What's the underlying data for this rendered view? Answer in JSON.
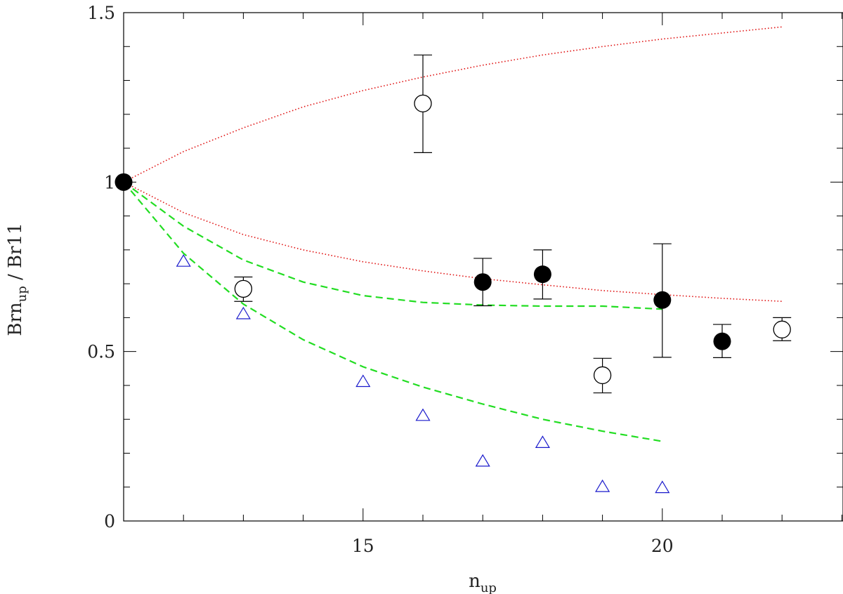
{
  "chart_data": {
    "type": "scatter",
    "xlabel": "n",
    "xlabel_sub": "up",
    "ylabel": "Brn",
    "ylabel_sub": "up",
    "ylabel_suffix": " / Br11",
    "xlim": [
      11,
      23
    ],
    "ylim": [
      0,
      1.5
    ],
    "x_major_ticks": [
      15,
      20
    ],
    "x_tick_labels": [
      "15",
      "20"
    ],
    "y_major_ticks": [
      0,
      0.5,
      1,
      1.5
    ],
    "y_tick_labels": [
      "0",
      "0.5",
      "1",
      "1.5"
    ],
    "colors": {
      "axis": "#000000",
      "data": "#000000",
      "model_dotted": "#e01010",
      "model_dashed": "#22dd22",
      "triangles": "#1a1acc"
    },
    "series": [
      {
        "marker": "filled-circle",
        "points": [
          {
            "x": 11,
            "y": 1.0
          },
          {
            "x": 17,
            "y": 0.705,
            "err": [
              0.635,
              0.775
            ]
          },
          {
            "x": 18,
            "y": 0.728,
            "err": [
              0.655,
              0.8
            ]
          },
          {
            "x": 20,
            "y": 0.652,
            "err": [
              0.483,
              0.818
            ]
          },
          {
            "x": 21,
            "y": 0.53,
            "err": [
              0.482,
              0.58
            ]
          }
        ]
      },
      {
        "marker": "open-circle",
        "points": [
          {
            "x": 13,
            "y": 0.685,
            "err": [
              0.648,
              0.72
            ]
          },
          {
            "x": 16,
            "y": 1.232,
            "err": [
              1.087,
              1.375
            ]
          },
          {
            "x": 19,
            "y": 0.43,
            "err": [
              0.378,
              0.48
            ]
          },
          {
            "x": 22,
            "y": 0.565,
            "err": [
              0.532,
              0.6
            ]
          }
        ]
      },
      {
        "marker": "open-triangle",
        "points": [
          {
            "x": 12,
            "y": 0.765
          },
          {
            "x": 13,
            "y": 0.61
          },
          {
            "x": 15,
            "y": 0.41
          },
          {
            "x": 16,
            "y": 0.31
          },
          {
            "x": 17,
            "y": 0.175
          },
          {
            "x": 18,
            "y": 0.23
          },
          {
            "x": 19,
            "y": 0.1
          },
          {
            "x": 20,
            "y": 0.097
          }
        ]
      }
    ],
    "lines": [
      {
        "style": "dotted",
        "points": [
          [
            11,
            1.0
          ],
          [
            12,
            1.09
          ],
          [
            13,
            1.16
          ],
          [
            14,
            1.222
          ],
          [
            15,
            1.27
          ],
          [
            16,
            1.31
          ],
          [
            17,
            1.345
          ],
          [
            18,
            1.375
          ],
          [
            19,
            1.4
          ],
          [
            20,
            1.422
          ],
          [
            21,
            1.44
          ],
          [
            22,
            1.458
          ]
        ]
      },
      {
        "style": "dotted",
        "points": [
          [
            11,
            1.0
          ],
          [
            12,
            0.91
          ],
          [
            13,
            0.845
          ],
          [
            14,
            0.8
          ],
          [
            15,
            0.765
          ],
          [
            16,
            0.738
          ],
          [
            17,
            0.715
          ],
          [
            18,
            0.697
          ],
          [
            19,
            0.68
          ],
          [
            20,
            0.668
          ],
          [
            21,
            0.657
          ],
          [
            22,
            0.648
          ]
        ]
      },
      {
        "style": "dashed",
        "points": [
          [
            11,
            1.0
          ],
          [
            12,
            0.87
          ],
          [
            13,
            0.77
          ],
          [
            14,
            0.705
          ],
          [
            15,
            0.665
          ],
          [
            16,
            0.645
          ],
          [
            17,
            0.637
          ],
          [
            18,
            0.634
          ],
          [
            19,
            0.634
          ],
          [
            20,
            0.625
          ]
        ]
      },
      {
        "style": "dashed",
        "points": [
          [
            11,
            1.0
          ],
          [
            12,
            0.79
          ],
          [
            13,
            0.64
          ],
          [
            14,
            0.535
          ],
          [
            15,
            0.455
          ],
          [
            16,
            0.395
          ],
          [
            17,
            0.345
          ],
          [
            18,
            0.3
          ],
          [
            19,
            0.265
          ],
          [
            20,
            0.235
          ]
        ]
      }
    ]
  }
}
